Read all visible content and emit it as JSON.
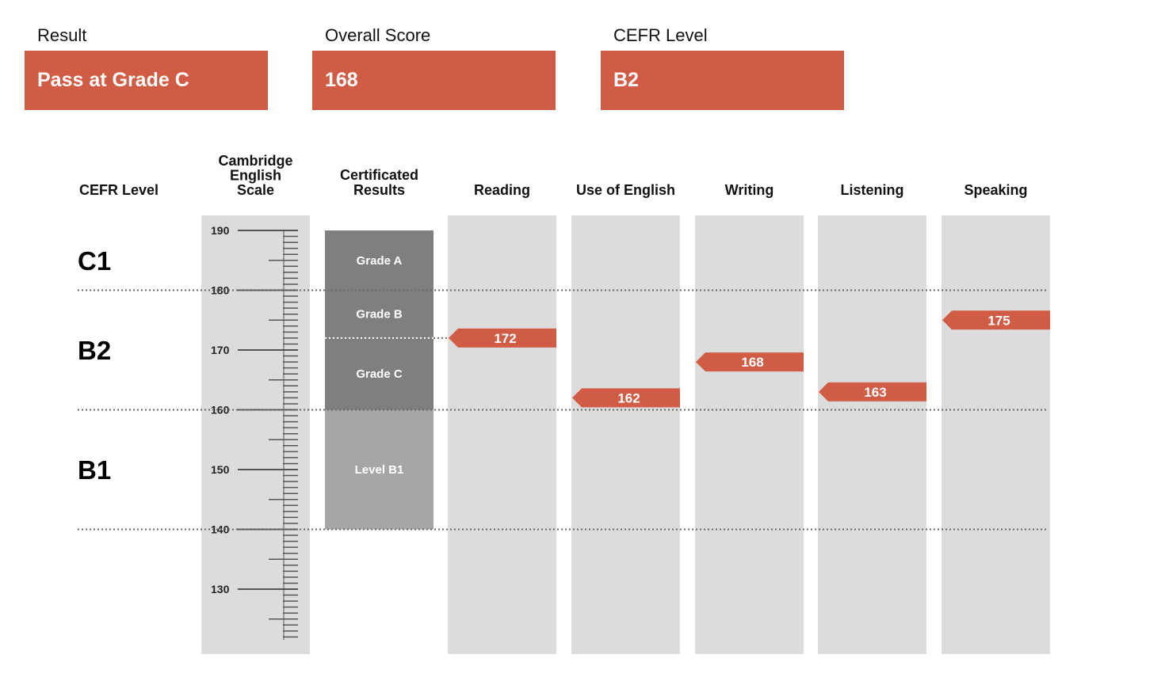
{
  "summary": {
    "result_label": "Result",
    "result_value": "Pass at Grade C",
    "overall_label": "Overall Score",
    "overall_value": "168",
    "cefr_label": "CEFR Level",
    "cefr_value": "B2"
  },
  "colors": {
    "accent": "#d05c45",
    "column_bg": "#dcdcdc",
    "grade_dark": "#7f7f7f",
    "grade_light": "#a6a6a6"
  },
  "chart_data": {
    "type": "bar",
    "scale_min": 122,
    "scale_max": 192,
    "axis_ticks": [
      190,
      180,
      170,
      160,
      150,
      140,
      130
    ],
    "headers": {
      "cefr": "CEFR Level",
      "scale": [
        "Cambridge",
        "English",
        "Scale"
      ],
      "certificated": [
        "Certificated",
        "Results"
      ]
    },
    "cefr_levels": [
      {
        "label": "C1",
        "from": 180,
        "to": 190
      },
      {
        "label": "B2",
        "from": 160,
        "to": 180
      },
      {
        "label": "B1",
        "from": 140,
        "to": 160
      }
    ],
    "level_boundaries": [
      180,
      160,
      140
    ],
    "certificated_bands": [
      {
        "label": "Grade A",
        "from": 180,
        "to": 190,
        "shade": "dark"
      },
      {
        "label": "Grade B",
        "from": 172,
        "to": 180,
        "shade": "dark"
      },
      {
        "label": "Grade C",
        "from": 160,
        "to": 172,
        "shade": "dark"
      },
      {
        "label": "Level B1",
        "from": 140,
        "to": 160,
        "shade": "light"
      }
    ],
    "skills": [
      {
        "name": "Reading",
        "score": 172
      },
      {
        "name": "Use of English",
        "score": 162
      },
      {
        "name": "Writing",
        "score": 168
      },
      {
        "name": "Listening",
        "score": 163
      },
      {
        "name": "Speaking",
        "score": 175
      }
    ]
  }
}
